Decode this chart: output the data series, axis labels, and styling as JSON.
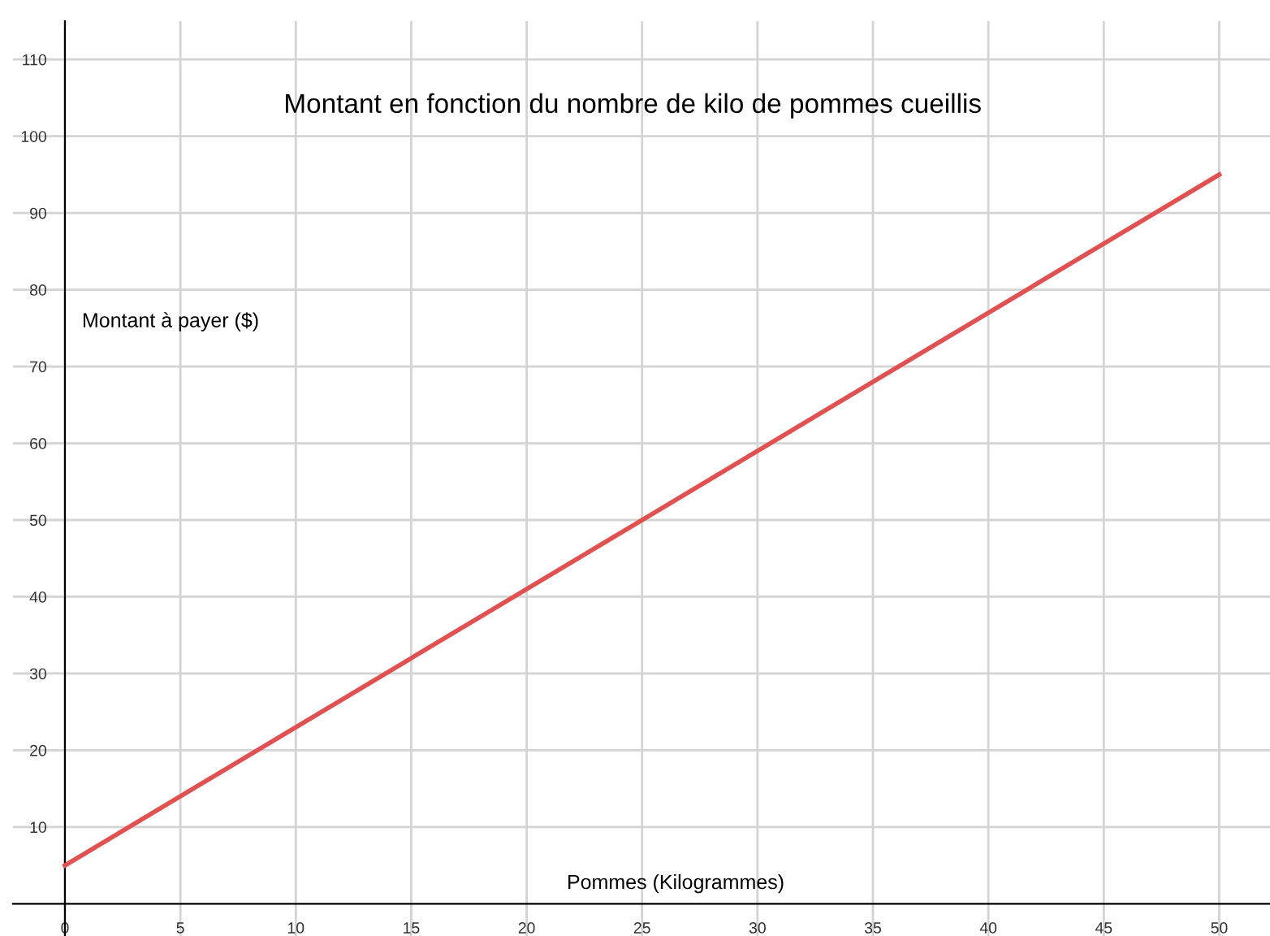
{
  "chart_data": {
    "type": "line",
    "title": "Montant en fonction du nombre de kilo de pommes cueillis",
    "xlabel": "Pommes (Kilogrammes)",
    "ylabel": "Montant à payer ($)",
    "x": [
      0,
      50
    ],
    "series": [
      {
        "color": "#e05252",
        "values": [
          5,
          95
        ]
      }
    ],
    "xlim": [
      -2.25,
      52.2
    ],
    "ylim": [
      -4.2,
      115
    ],
    "xticks": [
      0,
      5,
      10,
      15,
      20,
      25,
      30,
      35,
      40,
      45,
      50
    ],
    "yticks": [
      10,
      20,
      30,
      40,
      50,
      60,
      70,
      80,
      90,
      100,
      110
    ],
    "grid": true,
    "marker": "none",
    "line_style": "solid"
  }
}
